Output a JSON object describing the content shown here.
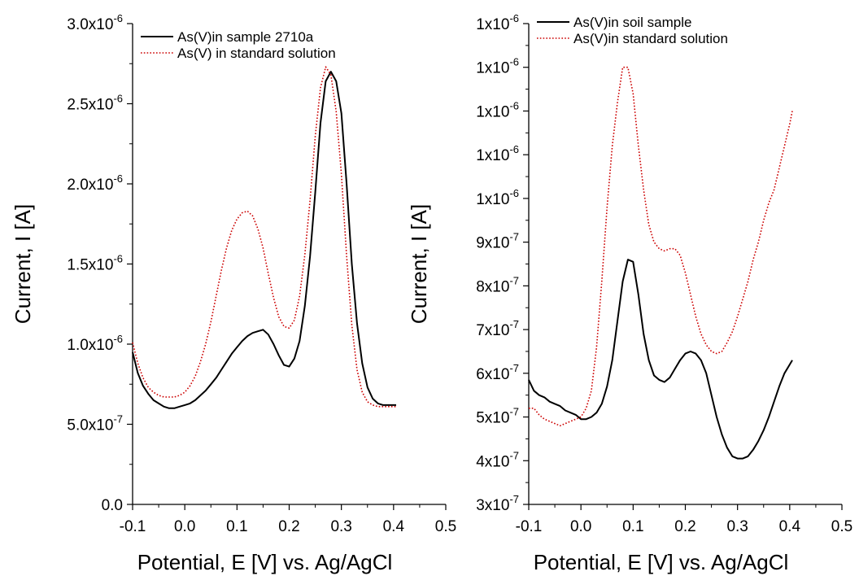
{
  "chart_data": [
    {
      "type": "line",
      "xlabel": "Potential, E [V] vs. Ag/AgCl",
      "ylabel": "Current, I [A]",
      "xlim": [
        -0.1,
        0.5
      ],
      "ylim": [
        0,
        3e-06
      ],
      "x_ticks": [
        "-0.1",
        "0.0",
        "0.1",
        "0.2",
        "0.3",
        "0.4",
        "0.5"
      ],
      "y_ticks": [
        {
          "m": "0.0",
          "e": ""
        },
        {
          "m": "5.0x10",
          "e": "-7"
        },
        {
          "m": "1.0x10",
          "e": "-6"
        },
        {
          "m": "1.5x10",
          "e": "-6"
        },
        {
          "m": "2.0x10",
          "e": "-6"
        },
        {
          "m": "2.5x10",
          "e": "-6"
        },
        {
          "m": "3.0x10",
          "e": "-6"
        }
      ],
      "grid": false,
      "legend_position": "top",
      "series": [
        {
          "name": "As(V)in sample 2710a",
          "color": "#000000",
          "style": "solid",
          "x": [
            -0.1,
            -0.09,
            -0.08,
            -0.07,
            -0.06,
            -0.05,
            -0.04,
            -0.03,
            -0.02,
            -0.01,
            0.0,
            0.01,
            0.02,
            0.03,
            0.04,
            0.05,
            0.06,
            0.07,
            0.08,
            0.09,
            0.1,
            0.11,
            0.12,
            0.13,
            0.14,
            0.15,
            0.16,
            0.17,
            0.18,
            0.19,
            0.2,
            0.21,
            0.22,
            0.23,
            0.24,
            0.25,
            0.26,
            0.27,
            0.28,
            0.29,
            0.3,
            0.31,
            0.32,
            0.33,
            0.34,
            0.35,
            0.36,
            0.37,
            0.38,
            0.39,
            0.4,
            0.405
          ],
          "values": [
            9.5e-07,
            8.2e-07,
            7.4e-07,
            6.9e-07,
            6.5e-07,
            6.3e-07,
            6.1e-07,
            6e-07,
            6e-07,
            6.1e-07,
            6.2e-07,
            6.3e-07,
            6.5e-07,
            6.8e-07,
            7.1e-07,
            7.5e-07,
            7.9e-07,
            8.4e-07,
            8.9e-07,
            9.4e-07,
            9.8e-07,
            1.02e-06,
            1.05e-06,
            1.07e-06,
            1.08e-06,
            1.09e-06,
            1.06e-06,
            1e-06,
            9.3e-07,
            8.7e-07,
            8.6e-07,
            9.1e-07,
            1.02e-06,
            1.24e-06,
            1.55e-06,
            1.95e-06,
            2.38e-06,
            2.64e-06,
            2.7e-06,
            2.64e-06,
            2.44e-06,
            2e-06,
            1.5e-06,
            1.13e-06,
            8.8e-07,
            7.3e-07,
            6.6e-07,
            6.3e-07,
            6.2e-07,
            6.2e-07,
            6.2e-07,
            6.2e-07
          ]
        },
        {
          "name": "As(V) in standard solution",
          "color": "#cc0000",
          "style": "dotted",
          "x": [
            -0.1,
            -0.09,
            -0.08,
            -0.07,
            -0.06,
            -0.05,
            -0.04,
            -0.03,
            -0.02,
            -0.01,
            0.0,
            0.01,
            0.02,
            0.03,
            0.04,
            0.05,
            0.06,
            0.07,
            0.08,
            0.09,
            0.1,
            0.11,
            0.12,
            0.13,
            0.14,
            0.15,
            0.16,
            0.17,
            0.18,
            0.19,
            0.2,
            0.21,
            0.22,
            0.23,
            0.24,
            0.25,
            0.26,
            0.27,
            0.28,
            0.29,
            0.3,
            0.31,
            0.32,
            0.33,
            0.34,
            0.35,
            0.36,
            0.37,
            0.38,
            0.39,
            0.4,
            0.405
          ],
          "values": [
            1.01e-06,
            8.8e-07,
            7.9e-07,
            7.3e-07,
            7e-07,
            6.8e-07,
            6.7e-07,
            6.7e-07,
            6.7e-07,
            6.8e-07,
            7e-07,
            7.4e-07,
            8e-07,
            8.9e-07,
            1e-06,
            1.14e-06,
            1.3e-06,
            1.46e-06,
            1.6e-06,
            1.71e-06,
            1.78e-06,
            1.82e-06,
            1.83e-06,
            1.8e-06,
            1.72e-06,
            1.6e-06,
            1.44e-06,
            1.29e-06,
            1.17e-06,
            1.11e-06,
            1.1e-06,
            1.15e-06,
            1.3e-06,
            1.56e-06,
            1.9e-06,
            2.3e-06,
            2.6e-06,
            2.73e-06,
            2.68e-06,
            2.45e-06,
            2.06e-06,
            1.55e-06,
            1.12e-06,
            8.4e-07,
            7e-07,
            6.4e-07,
            6.2e-07,
            6.1e-07,
            6.1e-07,
            6.1e-07,
            6.1e-07,
            6.1e-07
          ]
        }
      ]
    },
    {
      "type": "line",
      "xlabel": "Potential, E [V] vs. Ag/AgCl",
      "ylabel": "Current, I [A]",
      "xlim": [
        -0.1,
        0.5
      ],
      "ylim": [
        3e-07,
        1.4e-06
      ],
      "x_ticks": [
        "-0.1",
        "0.0",
        "0.1",
        "0.2",
        "0.3",
        "0.4",
        "0.5"
      ],
      "y_ticks": [
        {
          "m": "3x10",
          "e": "-7"
        },
        {
          "m": "4x10",
          "e": "-7"
        },
        {
          "m": "5x10",
          "e": "-7"
        },
        {
          "m": "6x10",
          "e": "-7"
        },
        {
          "m": "7x10",
          "e": "-7"
        },
        {
          "m": "8x10",
          "e": "-7"
        },
        {
          "m": "9x10",
          "e": "-7"
        },
        {
          "m": "1x10",
          "e": "-6"
        },
        {
          "m": "1x10",
          "e": "-6"
        },
        {
          "m": "1x10",
          "e": "-6"
        },
        {
          "m": "1x10",
          "e": "-6"
        },
        {
          "m": "1x10",
          "e": "-6"
        }
      ],
      "grid": false,
      "legend_position": "top",
      "series": [
        {
          "name": "As(V)in soil sample",
          "color": "#000000",
          "style": "solid",
          "x": [
            -0.1,
            -0.09,
            -0.08,
            -0.07,
            -0.06,
            -0.05,
            -0.04,
            -0.03,
            -0.02,
            -0.01,
            0.0,
            0.01,
            0.02,
            0.03,
            0.04,
            0.05,
            0.06,
            0.07,
            0.08,
            0.09,
            0.1,
            0.11,
            0.12,
            0.13,
            0.14,
            0.15,
            0.16,
            0.17,
            0.18,
            0.19,
            0.2,
            0.21,
            0.22,
            0.23,
            0.24,
            0.25,
            0.26,
            0.27,
            0.28,
            0.29,
            0.3,
            0.31,
            0.32,
            0.33,
            0.34,
            0.35,
            0.36,
            0.37,
            0.38,
            0.39,
            0.4,
            0.405
          ],
          "values": [
            5.85e-07,
            5.6e-07,
            5.5e-07,
            5.45e-07,
            5.35e-07,
            5.3e-07,
            5.25e-07,
            5.15e-07,
            5.1e-07,
            5.05e-07,
            4.95e-07,
            4.95e-07,
            5e-07,
            5.1e-07,
            5.3e-07,
            5.7e-07,
            6.3e-07,
            7.2e-07,
            8.1e-07,
            8.6e-07,
            8.55e-07,
            7.8e-07,
            6.9e-07,
            6.3e-07,
            5.95e-07,
            5.85e-07,
            5.8e-07,
            5.9e-07,
            6.1e-07,
            6.3e-07,
            6.45e-07,
            6.5e-07,
            6.45e-07,
            6.3e-07,
            6e-07,
            5.5e-07,
            5e-07,
            4.6e-07,
            4.3e-07,
            4.1e-07,
            4.05e-07,
            4.05e-07,
            4.1e-07,
            4.25e-07,
            4.45e-07,
            4.7e-07,
            5e-07,
            5.35e-07,
            5.7e-07,
            6e-07,
            6.2e-07,
            6.3e-07
          ]
        },
        {
          "name": "As(V)in standard solution",
          "color": "#cc0000",
          "style": "dotted",
          "x": [
            -0.1,
            -0.09,
            -0.08,
            -0.07,
            -0.06,
            -0.05,
            -0.04,
            -0.03,
            -0.02,
            -0.01,
            0.0,
            0.01,
            0.02,
            0.03,
            0.04,
            0.05,
            0.06,
            0.07,
            0.08,
            0.09,
            0.1,
            0.11,
            0.12,
            0.13,
            0.14,
            0.15,
            0.16,
            0.17,
            0.18,
            0.19,
            0.2,
            0.21,
            0.22,
            0.23,
            0.24,
            0.25,
            0.26,
            0.27,
            0.28,
            0.29,
            0.3,
            0.31,
            0.32,
            0.33,
            0.34,
            0.35,
            0.36,
            0.37,
            0.38,
            0.39,
            0.4,
            0.405
          ],
          "values": [
            5.2e-07,
            5.2e-07,
            5.05e-07,
            4.95e-07,
            4.9e-07,
            4.85e-07,
            4.8e-07,
            4.85e-07,
            4.9e-07,
            4.95e-07,
            5e-07,
            5.2e-07,
            5.6e-07,
            6.6e-07,
            8.1e-07,
            9.8e-07,
            1.12e-06,
            1.22e-06,
            1.3e-06,
            1.3e-06,
            1.24e-06,
            1.12e-06,
            1.02e-06,
            9.4e-07,
            9e-07,
            8.85e-07,
            8.8e-07,
            8.85e-07,
            8.85e-07,
            8.7e-07,
            8.3e-07,
            7.8e-07,
            7.3e-07,
            6.9e-07,
            6.65e-07,
            6.5e-07,
            6.45e-07,
            6.5e-07,
            6.7e-07,
            6.95e-07,
            7.3e-07,
            7.7e-07,
            8.1e-07,
            8.6e-07,
            9e-07,
            9.5e-07,
            9.9e-07,
            1.02e-06,
            1.07e-06,
            1.12e-06,
            1.17e-06,
            1.2e-06
          ]
        }
      ]
    }
  ]
}
